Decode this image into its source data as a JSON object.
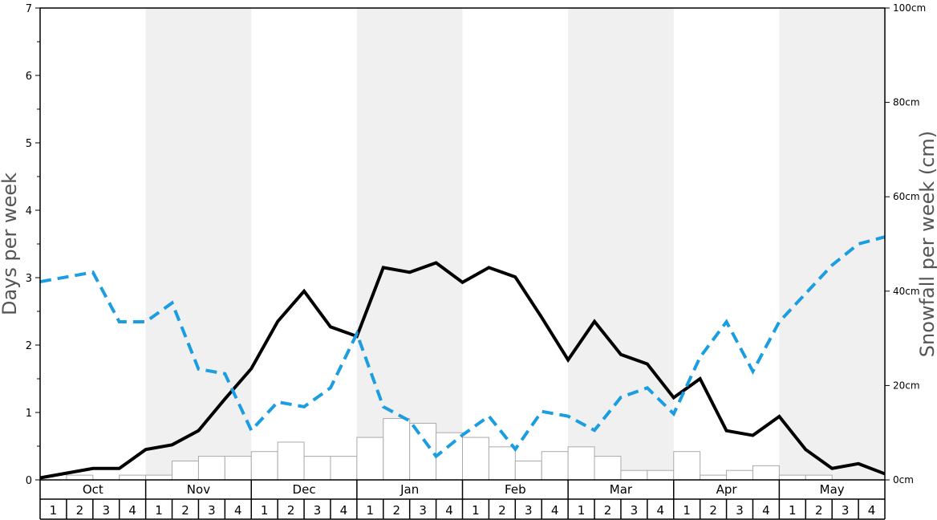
{
  "chart_data": {
    "type": "bar+line",
    "months": [
      "Oct",
      "Nov",
      "Dec",
      "Jan",
      "Feb",
      "Mar",
      "Apr",
      "May"
    ],
    "weeks": [
      "1",
      "2",
      "3",
      "4"
    ],
    "left_axis": {
      "label": "Days per week",
      "ylim": [
        0,
        7
      ],
      "ticks": [
        "0",
        "1",
        "2",
        "3",
        "4",
        "5",
        "6",
        "7"
      ]
    },
    "right_axis": {
      "label": "Snowfall per week (cm)",
      "ylim": [
        0,
        100
      ],
      "ticks": [
        "0cm",
        "20cm",
        "40cm",
        "60cm",
        "80cm",
        "100cm"
      ]
    },
    "shaded_months": [
      "Nov",
      "Jan",
      "Mar",
      "May"
    ],
    "snowfall_bars_cm": [
      0,
      1,
      0,
      1,
      1,
      4,
      5,
      5,
      6,
      8,
      5,
      5,
      9,
      13,
      12,
      10,
      9,
      7,
      4,
      6,
      7,
      5,
      2,
      2,
      6,
      1,
      2,
      3,
      1,
      1,
      0,
      0
    ],
    "series": [
      {
        "style": "solid",
        "color": "#000000",
        "axis": "left",
        "values": [
          0.03,
          0.1,
          0.17,
          0.17,
          0.45,
          0.52,
          0.73,
          1.2,
          1.65,
          2.35,
          2.8,
          2.27,
          2.13,
          3.15,
          3.08,
          3.22,
          2.93,
          3.15,
          3.01,
          2.41,
          1.78,
          2.35,
          1.86,
          1.72,
          1.22,
          1.5,
          0.73,
          0.66,
          0.94,
          0.45,
          0.17,
          0.24,
          0.09
        ]
      },
      {
        "style": "dashed",
        "color": "#1a9de1",
        "axis": "right",
        "values": [
          42,
          43,
          44,
          33.5,
          33.5,
          37.5,
          23.5,
          22.5,
          10.5,
          16.5,
          15.5,
          19.5,
          31,
          15.5,
          12.5,
          5,
          9.5,
          13.5,
          6.5,
          14.5,
          13.5,
          10.5,
          17.5,
          19.5,
          14,
          26,
          33.5,
          23,
          33.5,
          39.5,
          45.5,
          50,
          51.5
        ]
      }
    ]
  }
}
